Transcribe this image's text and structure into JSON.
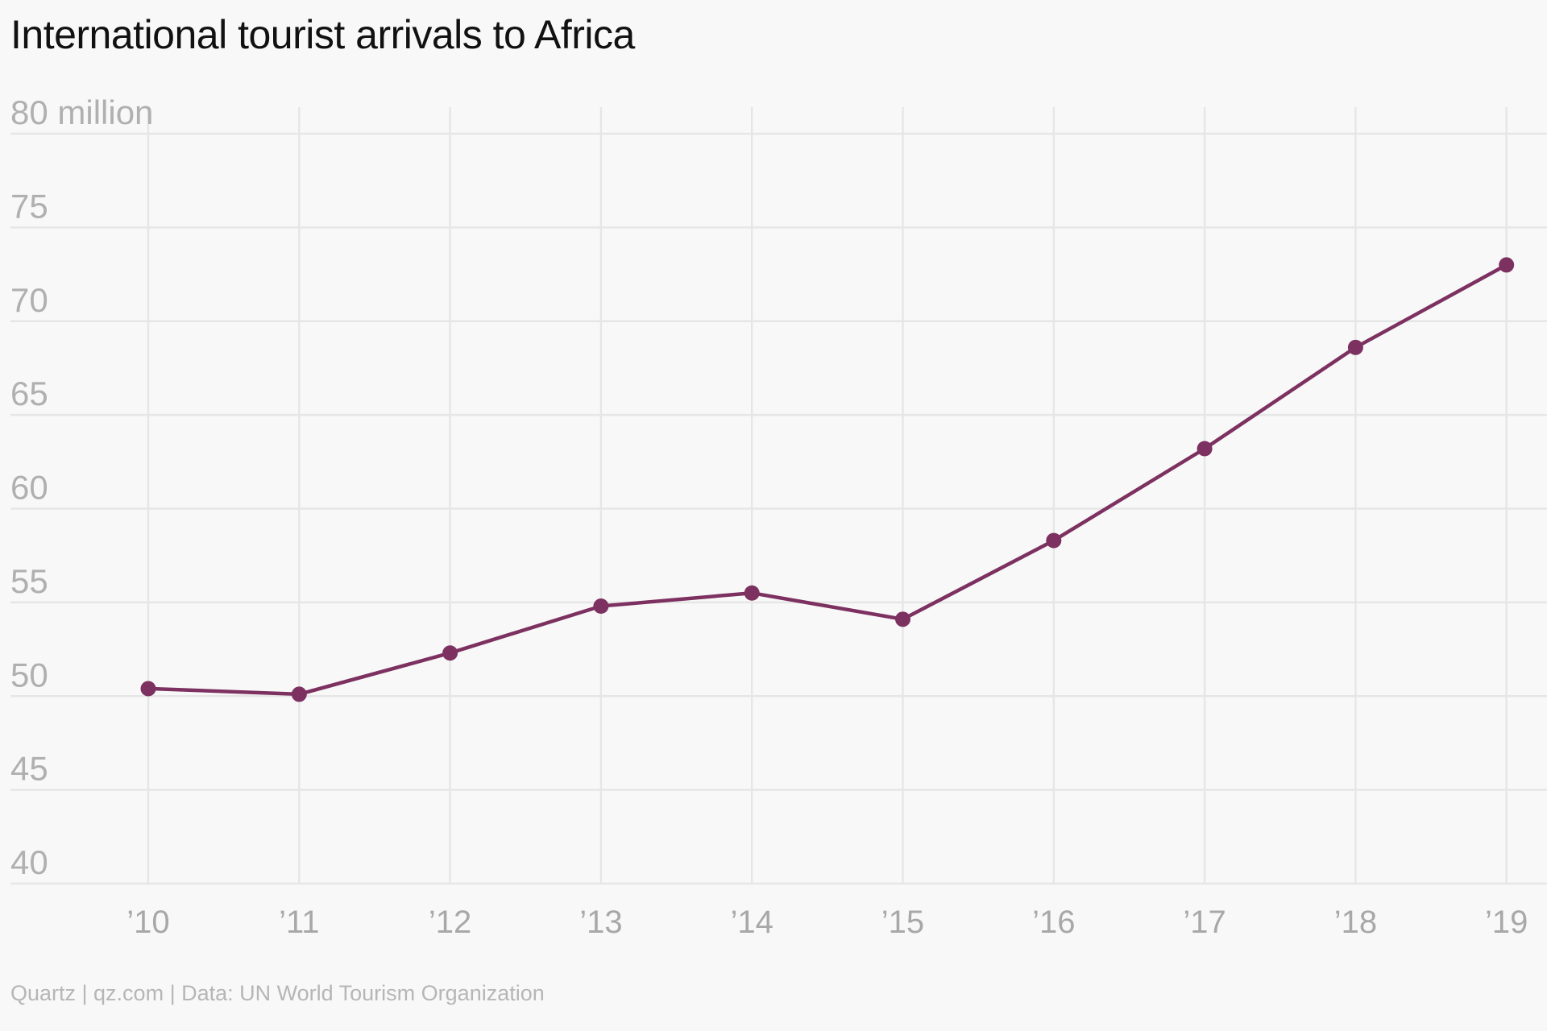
{
  "chart_data": {
    "type": "line",
    "title": "International tourist arrivals to Africa",
    "x": [
      "’10",
      "’11",
      "’12",
      "’13",
      "’14",
      "’15",
      "’16",
      "’17",
      "’18",
      "’19"
    ],
    "series": [
      {
        "values": [
          50.4,
          50.1,
          52.3,
          54.8,
          55.5,
          54.1,
          58.3,
          63.2,
          68.6,
          73.0
        ],
        "color": "#7d3160"
      }
    ],
    "y_ticks": [
      40,
      45,
      50,
      55,
      60,
      65,
      70,
      75,
      80
    ],
    "y_top_label": "80 million",
    "ylim": [
      40,
      80
    ],
    "grid": true,
    "footer": "Quartz | qz.com | Data: UN World Tourism Organization"
  }
}
